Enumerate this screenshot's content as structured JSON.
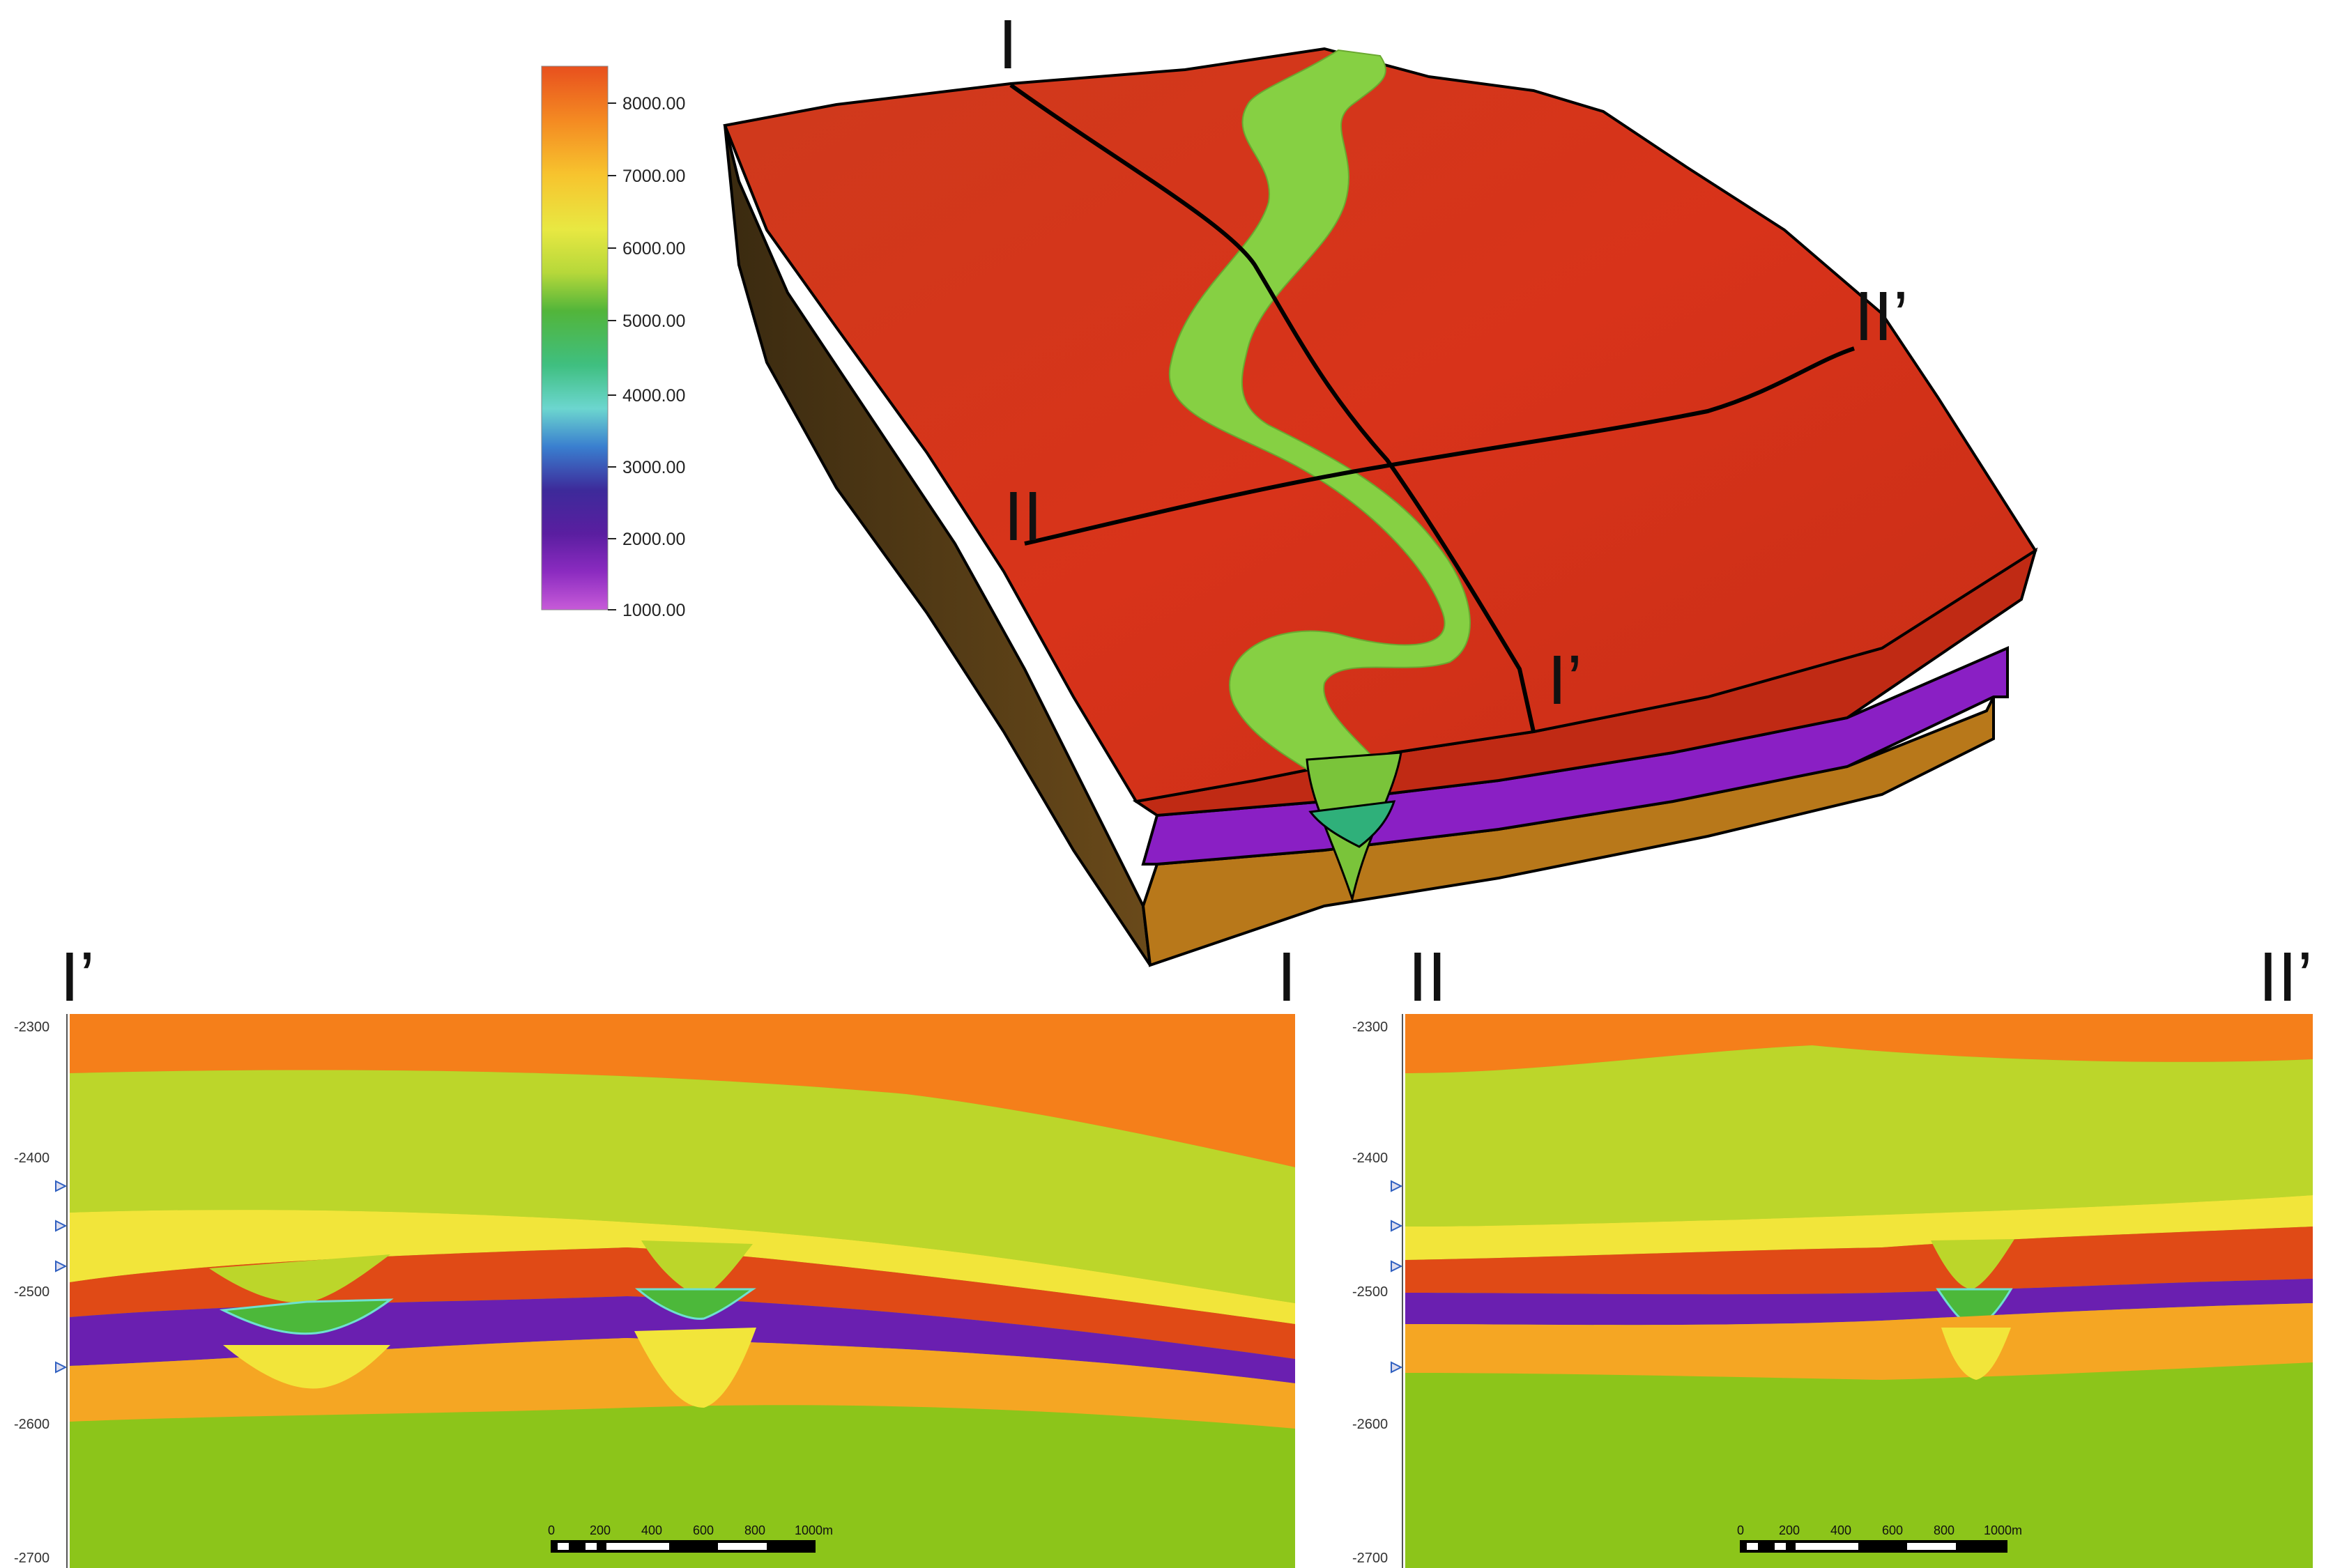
{
  "colorbar": {
    "ticks": [
      "8000.00",
      "7000.00",
      "6000.00",
      "5000.00",
      "4000.00",
      "3000.00",
      "2000.00",
      "1000.00"
    ]
  },
  "block_labels": {
    "line_i_start": "I",
    "line_i_end": "I’",
    "line_ii_start": "II",
    "line_ii_end": "II’"
  },
  "sections": [
    {
      "left_label": "I’",
      "right_label": "I",
      "depth_ticks": [
        "-2300",
        "-2400",
        "-2500",
        "-2600",
        "-2700"
      ],
      "scale_labels": [
        "0",
        "200",
        "400",
        "600",
        "800",
        "1000m"
      ]
    },
    {
      "left_label": "II",
      "right_label": "II’",
      "depth_ticks": [
        "-2300",
        "-2400",
        "-2500",
        "-2600",
        "-2700"
      ],
      "scale_labels": [
        "0",
        "200",
        "400",
        "600",
        "800",
        "1000m"
      ]
    }
  ],
  "colors": {
    "top_surface": "#d8331a",
    "channel": "#86d043",
    "purple_layer": "#8a1fc4",
    "brown_layer": "#b8781a",
    "section_orange": "#f57f1a",
    "section_lime": "#bcd62a",
    "section_yellow": "#f2e53a",
    "section_red": "#e04a16",
    "section_purple": "#6a1fb0",
    "section_green": "#8cc51a"
  }
}
